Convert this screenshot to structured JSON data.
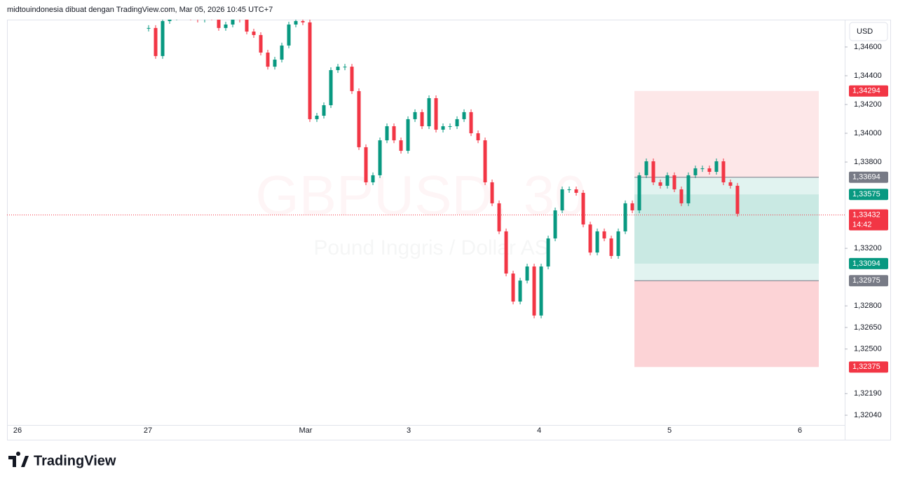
{
  "header": {
    "text": "midtouindonesia dibuat dengan TradingView.com, Mar 05, 2026 10:45 UTC+7"
  },
  "currency_button": "USD",
  "watermark": {
    "symbol": "GBPUSD, 30",
    "name": "Pound Inggris / Dollar AS"
  },
  "logo": "TradingView",
  "chart_data": {
    "type": "candlestick",
    "x_labels": [
      "26",
      "27",
      "Mar",
      "3",
      "4",
      "5",
      "6"
    ],
    "ylim": [
      1.31972,
      1.3479
    ],
    "yticks": [
      {
        "value": 1.346,
        "label": "1,34600"
      },
      {
        "value": 1.344,
        "label": "1,34400"
      },
      {
        "value": 1.342,
        "label": "1,34200"
      },
      {
        "value": 1.34,
        "label": "1,34000"
      },
      {
        "value": 1.338,
        "label": "1,33800"
      },
      {
        "value": 1.332,
        "label": "1,33200"
      },
      {
        "value": 1.328,
        "label": "1,32800"
      },
      {
        "value": 1.3265,
        "label": "1,32650"
      },
      {
        "value": 1.325,
        "label": "1,32500"
      },
      {
        "value": 1.3219,
        "label": "1,32190"
      },
      {
        "value": 1.3204,
        "label": "1,32040"
      }
    ],
    "up_color": "#089981",
    "down_color": "#f23645",
    "closes": [
      1.34732,
      1.34537,
      1.3478,
      1.34805,
      1.34819,
      1.34819,
      1.34805,
      1.3479,
      1.3481,
      1.34805,
      1.34732,
      1.34756,
      1.34805,
      1.3479,
      1.34707,
      1.34683,
      1.34561,
      1.34463,
      1.34512,
      1.3461,
      1.34756,
      1.3478,
      1.34771,
      1.34098,
      1.34122,
      1.34195,
      1.34439,
      1.34463,
      1.34463,
      1.34293,
      1.33903,
      1.33659,
      1.33708,
      1.33951,
      1.34049,
      1.33951,
      1.33878,
      1.34098,
      1.34147,
      1.34049,
      1.34244,
      1.34025,
      1.34049,
      1.34049,
      1.34098,
      1.34147,
      1.34,
      1.33951,
      1.33659,
      1.33513,
      1.33318,
      1.33025,
      1.3283,
      1.32976,
      1.33074,
      1.32733,
      1.33074,
      1.33269,
      1.33464,
      1.3361,
      1.3361,
      1.33586,
      1.33366,
      1.33171,
      1.33318,
      1.33269,
      1.33147,
      1.33318,
      1.33513,
      1.33464,
      1.33708,
      1.33805,
      1.33659,
      1.33635,
      1.33708,
      1.3361,
      1.33513,
      1.33708,
      1.33756,
      1.33756,
      1.33732,
      1.33805,
      1.33659,
      1.33635,
      1.3344
    ],
    "price_tags": [
      {
        "value": 1.34294,
        "label": "1,34294",
        "color": "#f23645"
      },
      {
        "value": 1.33694,
        "label": "1,33694",
        "color": "#787b86"
      },
      {
        "value": 1.33575,
        "label": "1,33575",
        "color": "#089981"
      },
      {
        "value": 1.33432,
        "label": "1,33432",
        "color": "#f23645",
        "countdown": "14:42"
      },
      {
        "value": 1.33094,
        "label": "1,33094",
        "color": "#089981"
      },
      {
        "value": 1.32975,
        "label": "1,32975",
        "color": "#787b86"
      },
      {
        "value": 1.32375,
        "label": "1,32375",
        "color": "#f23645"
      }
    ]
  }
}
